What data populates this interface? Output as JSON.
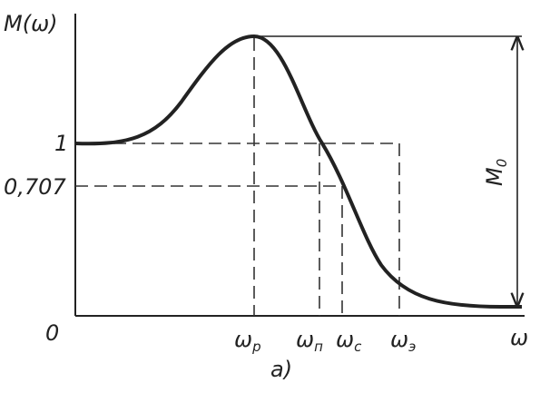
{
  "axes": {
    "y_label": "M(ω)",
    "x_label": "ω",
    "origin": "0"
  },
  "y_marks": [
    "1",
    "0,707"
  ],
  "x_marks": [
    {
      "main": "ω",
      "sub": "р"
    },
    {
      "main": "ω",
      "sub": "п"
    },
    {
      "main": "ω",
      "sub": "с"
    },
    {
      "main": "ω",
      "sub": "э"
    }
  ],
  "dimension": {
    "main": "M",
    "sub": "0"
  },
  "caption": "а)"
}
